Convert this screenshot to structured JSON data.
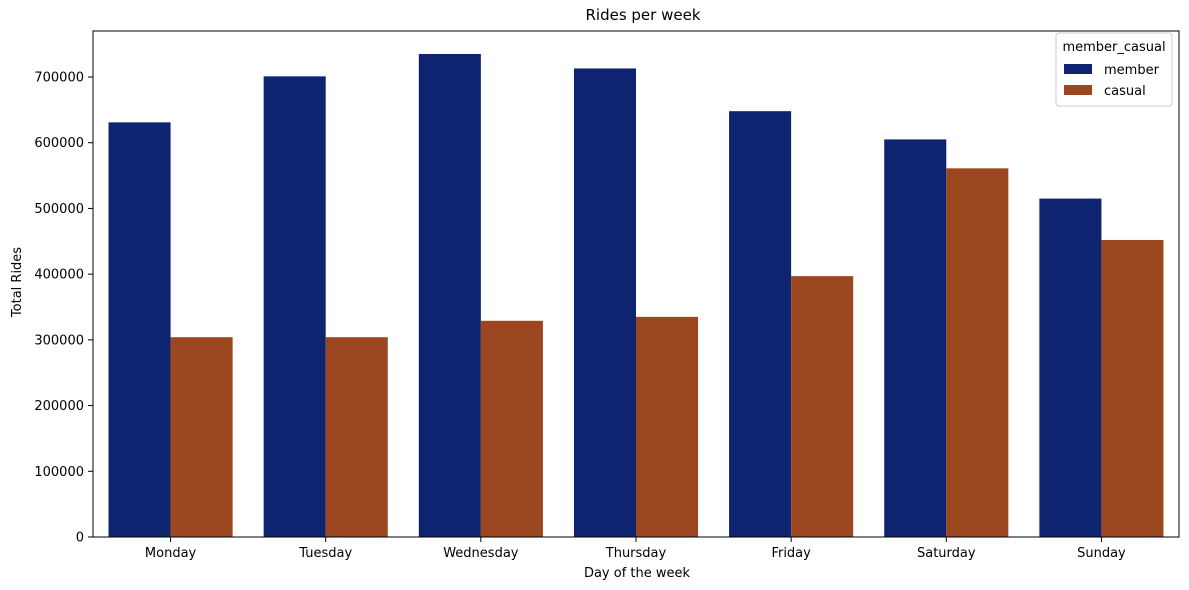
{
  "chart_data": {
    "type": "bar",
    "title": "Rides per week",
    "xlabel": "Day of the week",
    "ylabel": "Total Rides",
    "categories": [
      "Monday",
      "Tuesday",
      "Wednesday",
      "Thursday",
      "Friday",
      "Saturday",
      "Sunday"
    ],
    "series": [
      {
        "name": "member",
        "color": "#0f2471",
        "values": [
          631000,
          701000,
          735000,
          713000,
          648000,
          605000,
          515000
        ]
      },
      {
        "name": "casual",
        "color": "#9c4720",
        "values": [
          304000,
          304000,
          329000,
          335000,
          397000,
          561000,
          452000
        ]
      }
    ],
    "ylim": [
      0,
      770000
    ],
    "yticks": [
      0,
      100000,
      200000,
      300000,
      400000,
      500000,
      600000,
      700000
    ],
    "ytick_labels": [
      "0",
      "100000",
      "200000",
      "300000",
      "400000",
      "500000",
      "600000",
      "700000"
    ],
    "grid": false,
    "legend": {
      "title": "member_casual",
      "placement": "top-right"
    }
  }
}
